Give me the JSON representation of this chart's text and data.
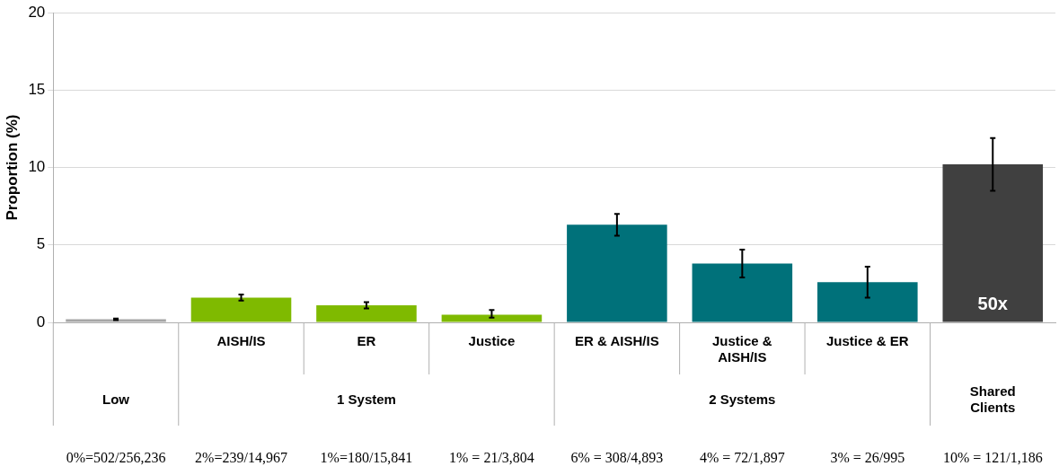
{
  "chart_data": {
    "type": "bar",
    "ylabel": "Proportion (%)",
    "categories": [
      null,
      "AISH/IS",
      "ER",
      "Justice",
      "ER & AISH/IS",
      "Justice & AISH/IS",
      "Justice & ER",
      null
    ],
    "values": [
      0.2,
      1.6,
      1.1,
      0.5,
      6.3,
      3.8,
      2.6,
      10.2
    ],
    "colors": [
      "#a6a6a6",
      "#7fba00",
      "#7fba00",
      "#7fba00",
      "#00717a",
      "#00717a",
      "#00717a",
      "#404040"
    ],
    "errors": [
      [
        0.15,
        0.25
      ],
      [
        1.4,
        1.8
      ],
      [
        0.9,
        1.3
      ],
      [
        0.3,
        0.8
      ],
      [
        5.6,
        7.0
      ],
      [
        2.9,
        4.7
      ],
      [
        1.6,
        3.6
      ],
      [
        8.5,
        11.9
      ]
    ],
    "ylim": [
      0,
      20
    ],
    "yticks": [
      0,
      5,
      10,
      15,
      20
    ],
    "grid": "y",
    "legend": false,
    "annotations": [
      "50x",
      "Low",
      "1 System",
      "2 Systems",
      "Shared Clients",
      "0%=502/256,236",
      "2%=239/14,967",
      "1%=180/15,841",
      "1% = 21/3,804",
      "6% = 308/4,893",
      "4% = 72/1,897",
      "3% = 26/995",
      "10% = 121/1,186"
    ]
  }
}
